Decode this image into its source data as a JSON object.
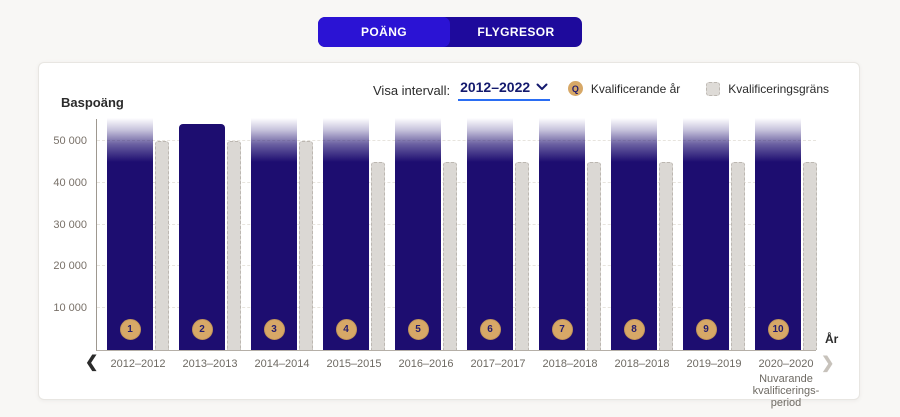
{
  "tabs": [
    {
      "label": "POÄNG",
      "active": true
    },
    {
      "label": "FLYGRESOR",
      "active": false
    }
  ],
  "controls": {
    "interval_label": "Visa intervall:",
    "interval_value": "2012–2022"
  },
  "legend": {
    "qualifying_year": {
      "marker_glyph": "Q",
      "label": "Kvalificerande år"
    },
    "threshold": {
      "label": "Kvalificeringsgräns"
    }
  },
  "nav": {
    "prev_glyph": "❮",
    "next_glyph": "❯"
  },
  "chart_data": {
    "type": "bar",
    "title": "",
    "y_axis_title": "Baspoäng",
    "x_axis_title": "År",
    "ylim": [
      0,
      55500
    ],
    "grid": true,
    "legend_position": "top-right",
    "yticks": [
      10000,
      20000,
      30000,
      40000,
      50000
    ],
    "ytick_labels": [
      "10 000",
      "20 000",
      "30 000",
      "40 000",
      "50 000"
    ],
    "categories": [
      "2012–2012",
      "2013–2013",
      "2014–2014",
      "2015–2015",
      "2016–2016",
      "2017–2017",
      "2018–2018",
      "2018–2018",
      "2019–2019",
      "2020–2020"
    ],
    "current_period_note": {
      "applies_to_index": 9,
      "lines": [
        "Nuvarande",
        "kvalificerings-",
        "period"
      ]
    },
    "series": [
      {
        "name": "Kvalificerande år",
        "color": "#1d0d70",
        "values": [
          55500,
          54000,
          55500,
          55500,
          55500,
          55500,
          55500,
          55500,
          55500,
          55500
        ],
        "overflow": [
          true,
          false,
          true,
          true,
          true,
          true,
          true,
          true,
          true,
          true
        ],
        "markers": [
          1,
          2,
          3,
          4,
          5,
          6,
          7,
          8,
          9,
          10
        ]
      },
      {
        "name": "Kvalificeringsgräns",
        "color": "#dbd8d4",
        "values": [
          50000,
          50000,
          50000,
          45000,
          45000,
          45000,
          45000,
          45000,
          45000,
          45000
        ]
      }
    ],
    "colors": {
      "bar_navy": "#1d0d70",
      "marker_gold": "#d7a867",
      "tab_active": "#2b13d4",
      "tab_container": "#1e0a9c",
      "underline_blue": "#2a6df3"
    }
  }
}
